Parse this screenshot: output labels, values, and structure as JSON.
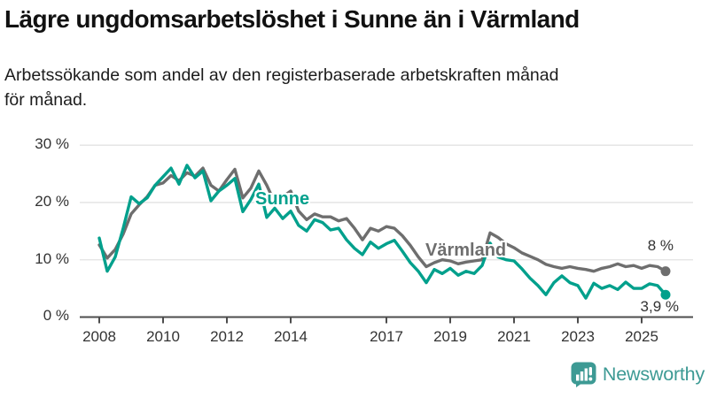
{
  "header": {
    "title": "Lägre ungdomsarbetslöshet i Sunne än i Värmland",
    "subtitle": "Arbetssökande som andel av den registerbaserade arbetskraften månad för månad.",
    "subtitle_lines": [
      "Arbetssökande som andel av den registerbaserade arbetskraften månad",
      "för månad."
    ]
  },
  "chart_data": {
    "type": "line",
    "title": "Lägre ungdomsarbetslöshet i Sunne än i Värmland",
    "subtitle": "Arbetssökande som andel av den registerbaserade arbetskraften månad för månad.",
    "x_start": 2008.0,
    "x_step": 0.25,
    "x_unit": "year",
    "ylim": [
      0,
      30
    ],
    "grid": "horizontal",
    "legend": "inline-series-labels",
    "y_ticks": [
      {
        "value": 0,
        "label": "0 %"
      },
      {
        "value": 10,
        "label": "10 %"
      },
      {
        "value": 20,
        "label": "20 %"
      },
      {
        "value": 30,
        "label": "30 %"
      }
    ],
    "x_ticks": [
      {
        "value": 2008,
        "label": "2008"
      },
      {
        "value": 2010,
        "label": "2010"
      },
      {
        "value": 2012,
        "label": "2012"
      },
      {
        "value": 2014,
        "label": "2014"
      },
      {
        "value": 2017,
        "label": "2017"
      },
      {
        "value": 2019,
        "label": "2019"
      },
      {
        "value": 2021,
        "label": "2021"
      },
      {
        "value": 2023,
        "label": "2023"
      },
      {
        "value": 2025,
        "label": "2025"
      }
    ],
    "series": [
      {
        "name": "Värmland",
        "color": "#6e6e6e",
        "end_label": "8 %",
        "end_value": 8.0,
        "values": [
          12.6,
          10.3,
          11.8,
          14.5,
          18.0,
          19.6,
          21.0,
          23.0,
          23.4,
          24.7,
          23.8,
          25.2,
          24.6,
          26.0,
          23.0,
          22.0,
          24.0,
          25.8,
          20.8,
          22.5,
          25.5,
          23.0,
          20.0,
          21.0,
          22.0,
          18.5,
          17.0,
          18.0,
          17.5,
          17.5,
          16.8,
          17.2,
          15.5,
          13.5,
          15.5,
          15.0,
          15.8,
          15.5,
          14.2,
          12.5,
          10.5,
          8.8,
          9.5,
          10.0,
          9.8,
          9.3,
          9.6,
          9.8,
          10.0,
          14.7,
          13.9,
          12.8,
          12.1,
          11.2,
          10.6,
          10.0,
          9.2,
          8.8,
          8.5,
          8.8,
          8.5,
          8.3,
          8.0,
          8.5,
          8.8,
          9.3,
          8.8,
          9.0,
          8.5,
          9.0,
          8.8,
          8.0
        ]
      },
      {
        "name": "Sunne",
        "color": "#00a08c",
        "end_label": "3,9 %",
        "end_value": 3.9,
        "values": [
          13.8,
          8.0,
          10.5,
          15.5,
          21.0,
          19.8,
          20.8,
          23.0,
          24.5,
          26.0,
          23.2,
          26.5,
          24.3,
          25.5,
          20.3,
          22.0,
          23.0,
          24.2,
          18.4,
          20.5,
          23.2,
          17.4,
          19.0,
          17.2,
          18.5,
          16.0,
          15.0,
          17.0,
          16.5,
          15.2,
          15.5,
          13.5,
          12.0,
          10.9,
          13.1,
          12.0,
          12.8,
          13.4,
          11.5,
          9.5,
          8.0,
          6.0,
          8.3,
          7.6,
          8.5,
          7.3,
          8.0,
          7.6,
          9.0,
          12.9,
          10.5,
          10.0,
          9.8,
          8.4,
          6.8,
          5.5,
          3.9,
          6.0,
          7.2,
          6.0,
          5.5,
          3.3,
          5.9,
          5.0,
          5.5,
          4.8,
          6.1,
          5.0,
          5.0,
          5.8,
          5.5,
          3.9
        ]
      }
    ]
  },
  "branding": {
    "logo_text": "Newsworthy",
    "logo_color": "#3d9a94"
  }
}
